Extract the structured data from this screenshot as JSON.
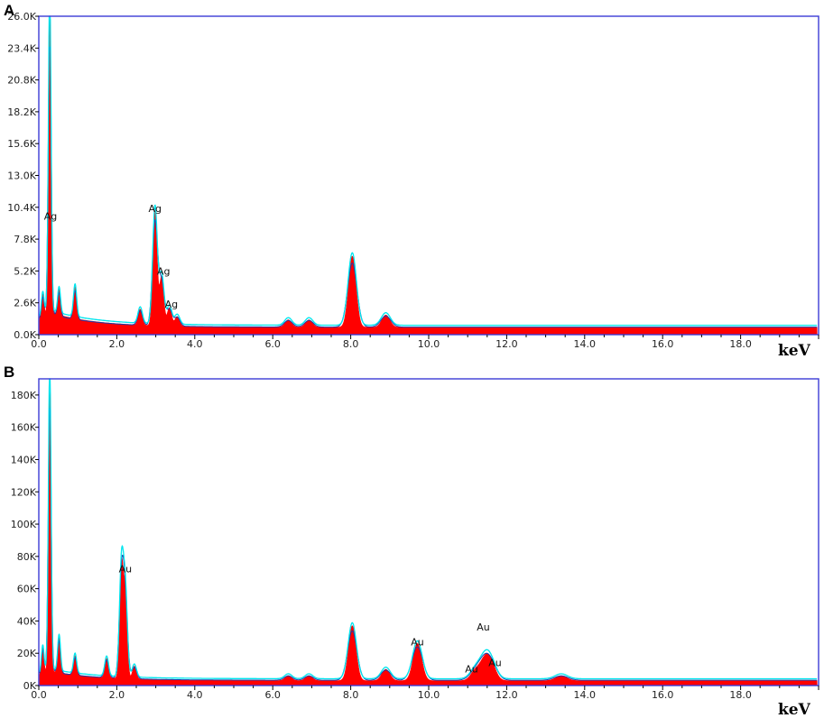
{
  "figure": {
    "panel_a_label": "A",
    "panel_b_label": "B"
  },
  "colors": {
    "frame": "#3b3bd6",
    "fill": "#ff0000",
    "line_cyan": "#00e5ee",
    "line_blue": "#1f3aa8"
  },
  "chart_data": [
    {
      "type": "area",
      "panel": "A",
      "xlabel": "keV",
      "ylabel": "",
      "xlim": [
        0,
        20
      ],
      "ylim": [
        0,
        26000
      ],
      "x_ticks": [
        "0.0",
        "2.0",
        "4.0",
        "6.0",
        "8.0",
        "10.0",
        "12.0",
        "14.0",
        "16.0",
        "18.0"
      ],
      "y_ticks": [
        "0.0K",
        "2.6K",
        "5.2K",
        "7.8K",
        "10.4K",
        "13.0K",
        "15.6K",
        "18.2K",
        "20.8K",
        "23.4K",
        "26.0K"
      ],
      "grid": false,
      "baseline": 600,
      "series": [
        {
          "peaks": [
            [
              0.1,
              1600
            ],
            [
              0.28,
              26000
            ],
            [
              0.52,
              2100
            ],
            [
              0.93,
              2600
            ],
            [
              2.6,
              1300
            ],
            [
              2.98,
              9400
            ],
            [
              3.15,
              4000
            ],
            [
              3.35,
              1500
            ],
            [
              3.55,
              800
            ],
            [
              6.4,
              600
            ],
            [
              6.93,
              600
            ],
            [
              8.04,
              5800
            ],
            [
              8.9,
              1000
            ]
          ]
        }
      ],
      "annotations": [
        {
          "text": "Ag",
          "x": 0.3,
          "y": 9400
        },
        {
          "text": "Ag",
          "x": 2.98,
          "y": 10000
        },
        {
          "text": "Ag",
          "x": 3.2,
          "y": 4900
        },
        {
          "text": "Ag",
          "x": 3.4,
          "y": 2200
        }
      ]
    },
    {
      "type": "area",
      "panel": "B",
      "xlabel": "keV",
      "ylabel": "",
      "xlim": [
        0,
        20
      ],
      "ylim": [
        0,
        190000
      ],
      "x_ticks": [
        "0.0",
        "2.0",
        "4.0",
        "6.0",
        "8.0",
        "10.0",
        "12.0",
        "14.0",
        "16.0",
        "18.0"
      ],
      "y_ticks": [
        "0K",
        "20K",
        "40K",
        "60K",
        "80K",
        "100K",
        "120K",
        "140K",
        "160K",
        "180K"
      ],
      "grid": false,
      "baseline": 3000,
      "series": [
        {
          "peaks": [
            [
              0.1,
              15000
            ],
            [
              0.28,
              186000
            ],
            [
              0.52,
              22000
            ],
            [
              0.93,
              12000
            ],
            [
              1.74,
              12000
            ],
            [
              2.12,
              68000
            ],
            [
              2.22,
              52000
            ],
            [
              2.45,
              8000
            ],
            [
              6.4,
              3000
            ],
            [
              6.93,
              3000
            ],
            [
              8.04,
              34000
            ],
            [
              8.9,
              7000
            ],
            [
              9.71,
              23000
            ],
            [
              11.2,
              6000
            ],
            [
              11.44,
              11000
            ],
            [
              11.6,
              9000
            ],
            [
              13.4,
              3000
            ]
          ]
        }
      ],
      "annotations": [
        {
          "text": "Au",
          "x": 2.22,
          "y": 70000
        },
        {
          "text": "Au",
          "x": 9.71,
          "y": 25000
        },
        {
          "text": "Au",
          "x": 11.4,
          "y": 34000
        },
        {
          "text": "Au",
          "x": 11.1,
          "y": 8000
        },
        {
          "text": "Au",
          "x": 11.7,
          "y": 12000
        }
      ]
    }
  ]
}
